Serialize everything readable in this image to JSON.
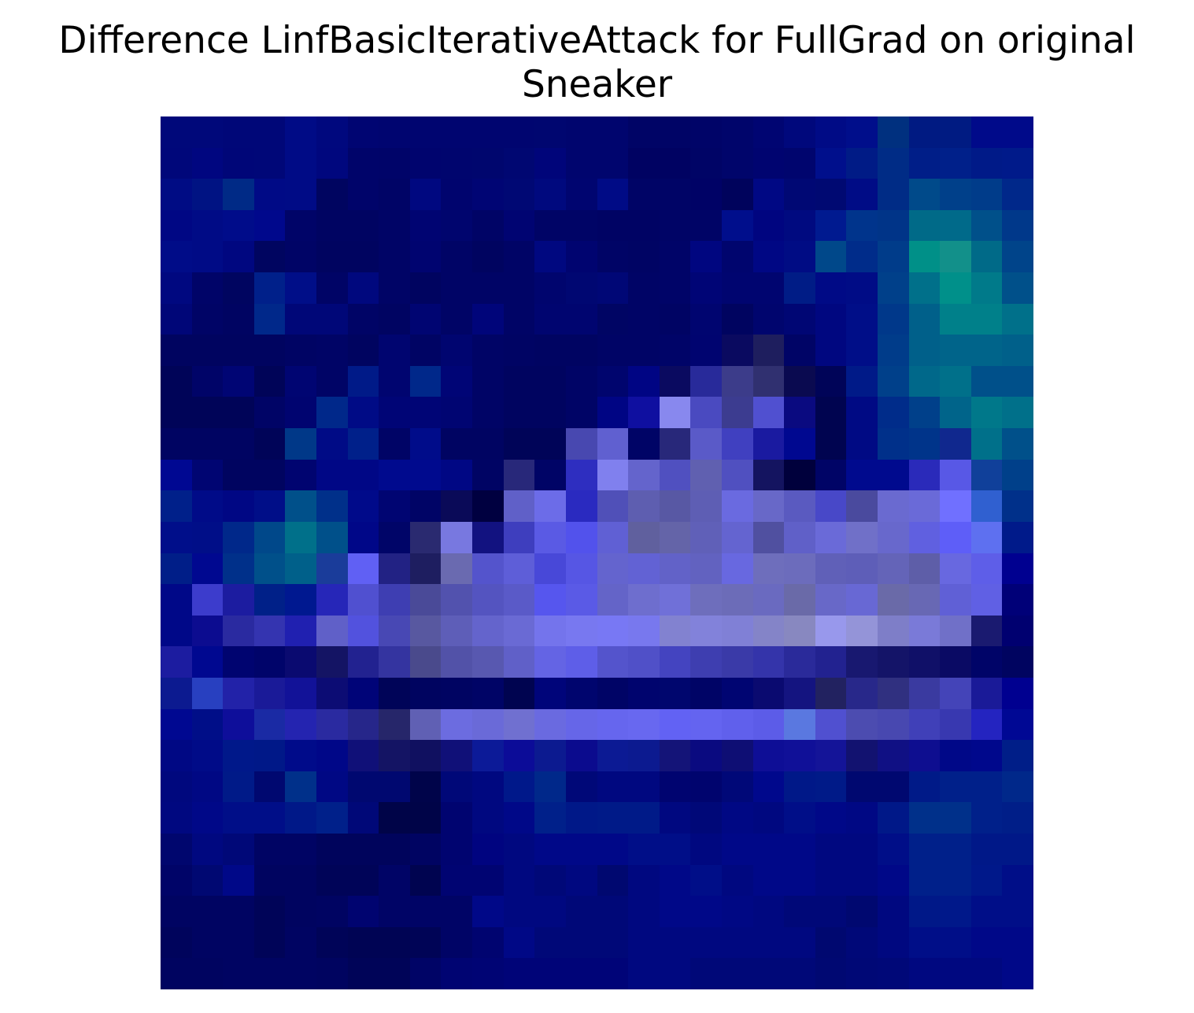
{
  "title": {
    "line1": "Difference LinfBasicIterativeAttack for FullGrad on original",
    "line2": "Sneaker"
  },
  "image": {
    "rows": 28,
    "cols": 28,
    "colormap": "gist_ncar-like (navy -> blue -> lavender, teal highlights)",
    "pixels": [
      [
        "#00087a",
        "#00087a",
        "#000778",
        "#000778",
        "#000b86",
        "#00087e",
        "#000572",
        "#000570",
        "#000570",
        "#000570",
        "#000570",
        "#000570",
        "#000670",
        "#00056e",
        "#00056e",
        "#000466",
        "#000466",
        "#000468",
        "#00056b",
        "#000572",
        "#00087c",
        "#000b86",
        "#000e8b",
        "#00307f",
        "#001a82",
        "#001b82",
        "#000a8a",
        "#000a8a"
      ],
      [
        "#00077a",
        "#000680",
        "#000678",
        "#000778",
        "#000b86",
        "#00077e",
        "#00046a",
        "#000469",
        "#00046e",
        "#00056e",
        "#00066e",
        "#000772",
        "#00057a",
        "#00056e",
        "#00056e",
        "#000262",
        "#000262",
        "#000466",
        "#00056b",
        "#000470",
        "#00056e",
        "#000f8c",
        "#001b86",
        "#002c86",
        "#001e88",
        "#00208a",
        "#001a88",
        "#001a8a"
      ],
      [
        "#000c84",
        "#001383",
        "#002a86",
        "#000a86",
        "#000b86",
        "#000560",
        "#00046a",
        "#000466",
        "#000880",
        "#00046e",
        "#000574",
        "#000874",
        "#00097e",
        "#000570",
        "#000b86",
        "#000466",
        "#000466",
        "#000266",
        "#00035c",
        "#000884",
        "#000874",
        "#000972",
        "#000c86",
        "#002c86",
        "#004a8a",
        "#00408a",
        "#003c8a",
        "#00288a"
      ],
      [
        "#000784",
        "#000b86",
        "#000c8a",
        "#00088c",
        "#000468",
        "#000462",
        "#000462",
        "#000466",
        "#000472",
        "#00056e",
        "#000466",
        "#000472",
        "#000466",
        "#000466",
        "#000364",
        "#000364",
        "#000466",
        "#000466",
        "#000e8c",
        "#000580",
        "#000a80",
        "#001a90",
        "#00348c",
        "#003488",
        "#006a88",
        "#006a8a",
        "#00508a",
        "#00388a"
      ],
      [
        "#000c88",
        "#000b86",
        "#000780",
        "#000560",
        "#000466",
        "#000460",
        "#000460",
        "#000466",
        "#000470",
        "#000466",
        "#000460",
        "#000466",
        "#000880",
        "#000470",
        "#000466",
        "#000464",
        "#000468",
        "#000680",
        "#00056e",
        "#000784",
        "#000c84",
        "#00488a",
        "#002c8a",
        "#003c8a",
        "#009088",
        "#12908a",
        "#006a88",
        "#00448a"
      ],
      [
        "#000880",
        "#000468",
        "#000560",
        "#00208a",
        "#000e88",
        "#000466",
        "#00087e",
        "#000466",
        "#000460",
        "#000466",
        "#000466",
        "#000466",
        "#00056e",
        "#000772",
        "#000776",
        "#000466",
        "#000468",
        "#000576",
        "#000570",
        "#000570",
        "#001c86",
        "#000a86",
        "#000c86",
        "#00408a",
        "#00708a",
        "#00908a",
        "#007a8a",
        "#00508a"
      ],
      [
        "#000678",
        "#000466",
        "#000462",
        "#00288a",
        "#000778",
        "#000778",
        "#000466",
        "#000462",
        "#000572",
        "#000466",
        "#00057a",
        "#000466",
        "#000570",
        "#000570",
        "#000564",
        "#000466",
        "#000464",
        "#000570",
        "#000460",
        "#00056e",
        "#000674",
        "#000780",
        "#000e88",
        "#00388a",
        "#00608a",
        "#00808a",
        "#00808a",
        "#00708a"
      ],
      [
        "#000460",
        "#000460",
        "#000460",
        "#000460",
        "#000464",
        "#000466",
        "#000460",
        "#000570",
        "#000464",
        "#000570",
        "#000466",
        "#000464",
        "#000462",
        "#000462",
        "#000466",
        "#000466",
        "#000468",
        "#000470",
        "#0a0a60",
        "#1e1e5e",
        "#000466",
        "#000780",
        "#000e88",
        "#003c8a",
        "#00608a",
        "#00648a",
        "#00648a",
        "#00608a"
      ],
      [
        "#000458",
        "#000468",
        "#000574",
        "#000458",
        "#000572",
        "#000466",
        "#001a88",
        "#000570",
        "#00288a",
        "#000576",
        "#000466",
        "#000460",
        "#000460",
        "#000466",
        "#00056e",
        "#000584",
        "#0a0a60",
        "#282a9a",
        "#3c3c8a",
        "#303070",
        "#0a0a50",
        "#000458",
        "#001a88",
        "#00408a",
        "#00688a",
        "#00708a",
        "#00508a",
        "#00508a"
      ],
      [
        "#000458",
        "#000458",
        "#000458",
        "#000466",
        "#000470",
        "#00288a",
        "#000b86",
        "#000576",
        "#000576",
        "#000572",
        "#000466",
        "#000460",
        "#000460",
        "#000466",
        "#000584",
        "#0f0fa0",
        "#8888ee",
        "#4a4ac0",
        "#3c3c90",
        "#5050d0",
        "#0a0a80",
        "#000450",
        "#000a84",
        "#002c8a",
        "#00408a",
        "#00648a",
        "#00788a",
        "#00708a"
      ],
      [
        "#000462",
        "#000462",
        "#000462",
        "#000458",
        "#003888",
        "#000b86",
        "#00208a",
        "#000466",
        "#000c8a",
        "#000462",
        "#000462",
        "#000458",
        "#000458",
        "#4848b0",
        "#6060d0",
        "#000466",
        "#28287a",
        "#5a5ac8",
        "#4040c0",
        "#1a1aa0",
        "#000890",
        "#000450",
        "#000a84",
        "#00308a",
        "#00348a",
        "#10288e",
        "#00708a",
        "#00508a"
      ],
      [
        "#000892",
        "#000572",
        "#000460",
        "#000460",
        "#000470",
        "#000786",
        "#000786",
        "#000a8e",
        "#000a8e",
        "#000784",
        "#000464",
        "#28287a",
        "#000466",
        "#2e2ec0",
        "#8080ee",
        "#6464cc",
        "#5050c0",
        "#6060b0",
        "#5050c0",
        "#141460",
        "#00003c",
        "#000466",
        "#000a8e",
        "#000a8e",
        "#2a2aba",
        "#5858e6",
        "#10409a",
        "#00408a"
      ],
      [
        "#00208a",
        "#000b88",
        "#000784",
        "#000e88",
        "#00508a",
        "#00308a",
        "#000a8a",
        "#000572",
        "#000466",
        "#0a0a58",
        "#000040",
        "#6060c8",
        "#6c6ce8",
        "#2a2ac0",
        "#5050b8",
        "#5e5eb0",
        "#5858a4",
        "#5e5eb4",
        "#6a6ae0",
        "#6868c8",
        "#5a5ac0",
        "#4848c8",
        "#4a4a9e",
        "#6a6ad0",
        "#6a6ad8",
        "#7070ff",
        "#3060d0",
        "#00308a"
      ],
      [
        "#000e8a",
        "#000e88",
        "#00288a",
        "#00488a",
        "#00708a",
        "#00508a",
        "#000788",
        "#000568",
        "#2a2a70",
        "#7878e0",
        "#121280",
        "#3e3ebe",
        "#5a5ae4",
        "#5252ec",
        "#6060d4",
        "#60609e",
        "#6464a8",
        "#6060b8",
        "#6464d0",
        "#5050a0",
        "#6060c8",
        "#6a6ad8",
        "#7070c8",
        "#6868cc",
        "#6060e0",
        "#5e5ef8",
        "#5e70f0",
        "#001a8a"
      ],
      [
        "#001e88",
        "#000890",
        "#00308a",
        "#00508a",
        "#00608a",
        "#1a3c9a",
        "#6060f4",
        "#222284",
        "#1e1e60",
        "#6a6ab0",
        "#5454cc",
        "#5e5ed8",
        "#4848d8",
        "#5656e4",
        "#6464ce",
        "#6262d4",
        "#6262c8",
        "#6262c0",
        "#6868e0",
        "#6e6ebc",
        "#6c6cbc",
        "#6060b8",
        "#5e5eb8",
        "#6464b8",
        "#5e5ea8",
        "#6868e0",
        "#5e5ee8",
        "#000090"
      ],
      [
        "#000888",
        "#3c3ccc",
        "#1c1ca0",
        "#002088",
        "#001890",
        "#2626b8",
        "#5050d0",
        "#3e3eb2",
        "#4a4a98",
        "#5252ae",
        "#5454c0",
        "#5a5ac8",
        "#5656ee",
        "#5a5ae6",
        "#6464c8",
        "#6e6ece",
        "#7070d8",
        "#6e6ebc",
        "#6c6cb8",
        "#6a6ac0",
        "#6a6aa8",
        "#6868c8",
        "#6868d4",
        "#6a6aa8",
        "#6868b4",
        "#6060d6",
        "#6060e4",
        "#000078"
      ],
      [
        "#000888",
        "#0c0c90",
        "#2a2aa0",
        "#3434b0",
        "#2020b0",
        "#6060c8",
        "#5252de",
        "#4848b4",
        "#5858a0",
        "#5e5eb8",
        "#6464cc",
        "#6a6ad4",
        "#7474ec",
        "#7878f0",
        "#7878f4",
        "#7878ee",
        "#8282d0",
        "#8282da",
        "#8080d6",
        "#8484c8",
        "#8888c0",
        "#9898ec",
        "#9494d8",
        "#7e7ec8",
        "#7a7ad8",
        "#7070c8",
        "#1a1a70",
        "#000070"
      ],
      [
        "#1c1ca0",
        "#000890",
        "#000470",
        "#00046a",
        "#0a0a70",
        "#141464",
        "#222290",
        "#3434a0",
        "#4a4a8c",
        "#5252a8",
        "#5858b0",
        "#6060c8",
        "#6464e4",
        "#5e5ee8",
        "#5454cc",
        "#5050c8",
        "#4444c0",
        "#3e3eb0",
        "#3a3aa8",
        "#3434aa",
        "#2a2a9a",
        "#222290",
        "#181870",
        "#141468",
        "#101068",
        "#0a0a64",
        "#000468",
        "#000460"
      ],
      [
        "#0c1a90",
        "#2840c0",
        "#2222a8",
        "#1a1a98",
        "#121298",
        "#0c0c74",
        "#000478",
        "#000458",
        "#000460",
        "#000462",
        "#000466",
        "#000450",
        "#00057a",
        "#00056e",
        "#000466",
        "#00046e",
        "#00066e",
        "#000466",
        "#000572",
        "#0a0a70",
        "#141480",
        "#222260",
        "#28288a",
        "#303080",
        "#3a3aa0",
        "#4444b8",
        "#1a1a98",
        "#000090"
      ],
      [
        "#000891",
        "#000e88",
        "#0e0e9a",
        "#1a2aa4",
        "#2424b0",
        "#2a2aa0",
        "#26268a",
        "#26266a",
        "#6060b4",
        "#6c6ce0",
        "#6a6ad8",
        "#7070d0",
        "#6a6ae0",
        "#6666e8",
        "#6666ee",
        "#6868f0",
        "#6262f4",
        "#6464f0",
        "#6060ec",
        "#5c5ce8",
        "#5a78e0",
        "#5050d0",
        "#4c4cb0",
        "#4848b0",
        "#4040b8",
        "#3838b0",
        "#2424c0",
        "#000894"
      ],
      [
        "#000884",
        "#000b88",
        "#00188a",
        "#001888",
        "#000b8a",
        "#000788",
        "#101078",
        "#141464",
        "#101060",
        "#101078",
        "#0c1a98",
        "#0c0c98",
        "#0c1a90",
        "#0b0b8e",
        "#0c1a94",
        "#0c1a90",
        "#141478",
        "#0a0a80",
        "#0e0e74",
        "#0e0e96",
        "#101098",
        "#141498",
        "#121270",
        "#101084",
        "#0e0e90",
        "#000888",
        "#00088c",
        "#001e88"
      ],
      [
        "#00087e",
        "#000884",
        "#001a88",
        "#000870",
        "#00308a",
        "#000884",
        "#000870",
        "#000870",
        "#00044a",
        "#000878",
        "#000880",
        "#00188a",
        "#00288a",
        "#000878",
        "#000880",
        "#000880",
        "#000470",
        "#00046e",
        "#000878",
        "#00088c",
        "#001888",
        "#001a88",
        "#000870",
        "#000870",
        "#001a88",
        "#00208a",
        "#00208a",
        "#00288a"
      ],
      [
        "#000880",
        "#000888",
        "#000e88",
        "#000e88",
        "#001888",
        "#00208a",
        "#000878",
        "#000448",
        "#000448",
        "#000470",
        "#000880",
        "#000888",
        "#00208a",
        "#001888",
        "#001a88",
        "#001a88",
        "#000880",
        "#000878",
        "#000884",
        "#000880",
        "#000e88",
        "#000888",
        "#000884",
        "#001888",
        "#00308a",
        "#00308a",
        "#00208a",
        "#001e88"
      ],
      [
        "#00066e",
        "#000880",
        "#000878",
        "#000464",
        "#000464",
        "#00045c",
        "#00045c",
        "#00045c",
        "#000462",
        "#000470",
        "#000480",
        "#000880",
        "#000888",
        "#000888",
        "#000888",
        "#000e88",
        "#000e88",
        "#000880",
        "#000888",
        "#000888",
        "#000888",
        "#000880",
        "#000880",
        "#000e88",
        "#00208a",
        "#00208a",
        "#001888",
        "#001888"
      ],
      [
        "#000468",
        "#000872",
        "#000888",
        "#000460",
        "#000460",
        "#000458",
        "#000458",
        "#000466",
        "#000450",
        "#000472",
        "#000472",
        "#000880",
        "#000878",
        "#000880",
        "#000870",
        "#000880",
        "#000888",
        "#000e88",
        "#000880",
        "#000888",
        "#000888",
        "#000880",
        "#000880",
        "#000888",
        "#00208a",
        "#00208a",
        "#00188a",
        "#000e88"
      ],
      [
        "#000462",
        "#000462",
        "#000462",
        "#000458",
        "#000460",
        "#000462",
        "#000470",
        "#000466",
        "#000466",
        "#000466",
        "#000888",
        "#000880",
        "#000880",
        "#000878",
        "#000878",
        "#000880",
        "#000888",
        "#000888",
        "#000884",
        "#000880",
        "#000878",
        "#000878",
        "#000870",
        "#000880",
        "#001888",
        "#00188a",
        "#000e88",
        "#000e88"
      ],
      [
        "#00045c",
        "#000462",
        "#000462",
        "#000458",
        "#000462",
        "#000458",
        "#000454",
        "#000454",
        "#000456",
        "#000466",
        "#000470",
        "#000886",
        "#000878",
        "#000878",
        "#000878",
        "#000880",
        "#000880",
        "#000880",
        "#000880",
        "#000880",
        "#000880",
        "#000870",
        "#000878",
        "#000880",
        "#000e88",
        "#000e88",
        "#000888",
        "#000888"
      ],
      [
        "#000460",
        "#000460",
        "#000462",
        "#000462",
        "#000462",
        "#000460",
        "#000458",
        "#000458",
        "#000466",
        "#000472",
        "#000474",
        "#000478",
        "#000478",
        "#000478",
        "#000478",
        "#000880",
        "#000880",
        "#000878",
        "#000878",
        "#000878",
        "#000878",
        "#000872",
        "#000876",
        "#000878",
        "#000880",
        "#000880",
        "#000880",
        "#000888"
      ]
    ]
  }
}
